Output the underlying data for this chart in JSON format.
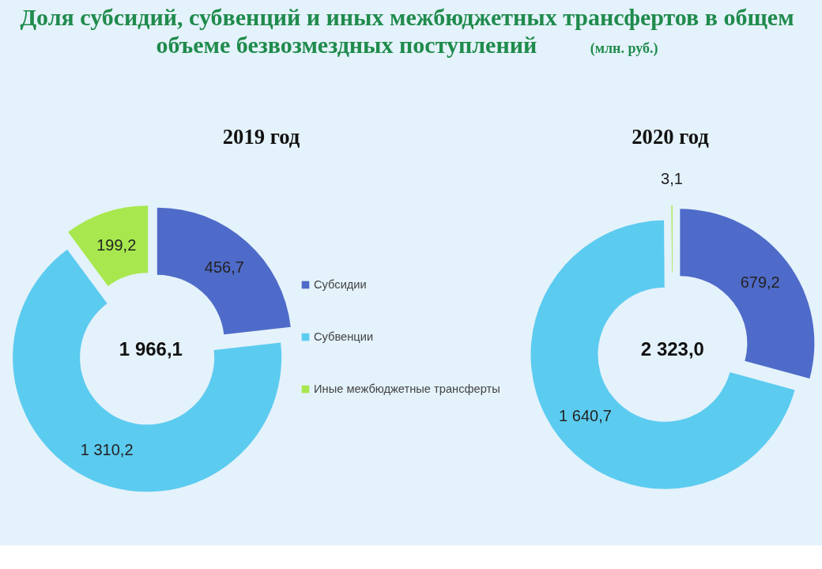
{
  "chart_data": [
    {
      "type": "donut",
      "title": "Доля субсидий, субвенций и иных межбюджетных трансфертов в общем объеме безвозмездных поступлений",
      "subtitle": "2019 год",
      "categories": [
        "Субсидии",
        "Субвенции",
        "Иные межбюджетные трансферты"
      ],
      "values": [
        456.7,
        1310.2,
        199.2
      ],
      "colors": [
        "#4f6bc9",
        "#5ccbf0",
        "#a8e84e"
      ],
      "value_labels": [
        "456,7",
        "1 310,2",
        "199,2"
      ],
      "annotations": [
        "1 966,1",
        "(млн. руб.)"
      ],
      "legend": "right"
    },
    {
      "type": "donut",
      "subtitle": "2020 год",
      "values": [
        679.2,
        1640.7,
        3.1
      ],
      "colors": [
        "#4f6bc9",
        "#5ccbf0",
        "#a8e84e"
      ],
      "value_labels": [
        "679,2",
        "1 640,7",
        "3,1"
      ],
      "annotations": [
        "2 323,0"
      ]
    }
  ]
}
